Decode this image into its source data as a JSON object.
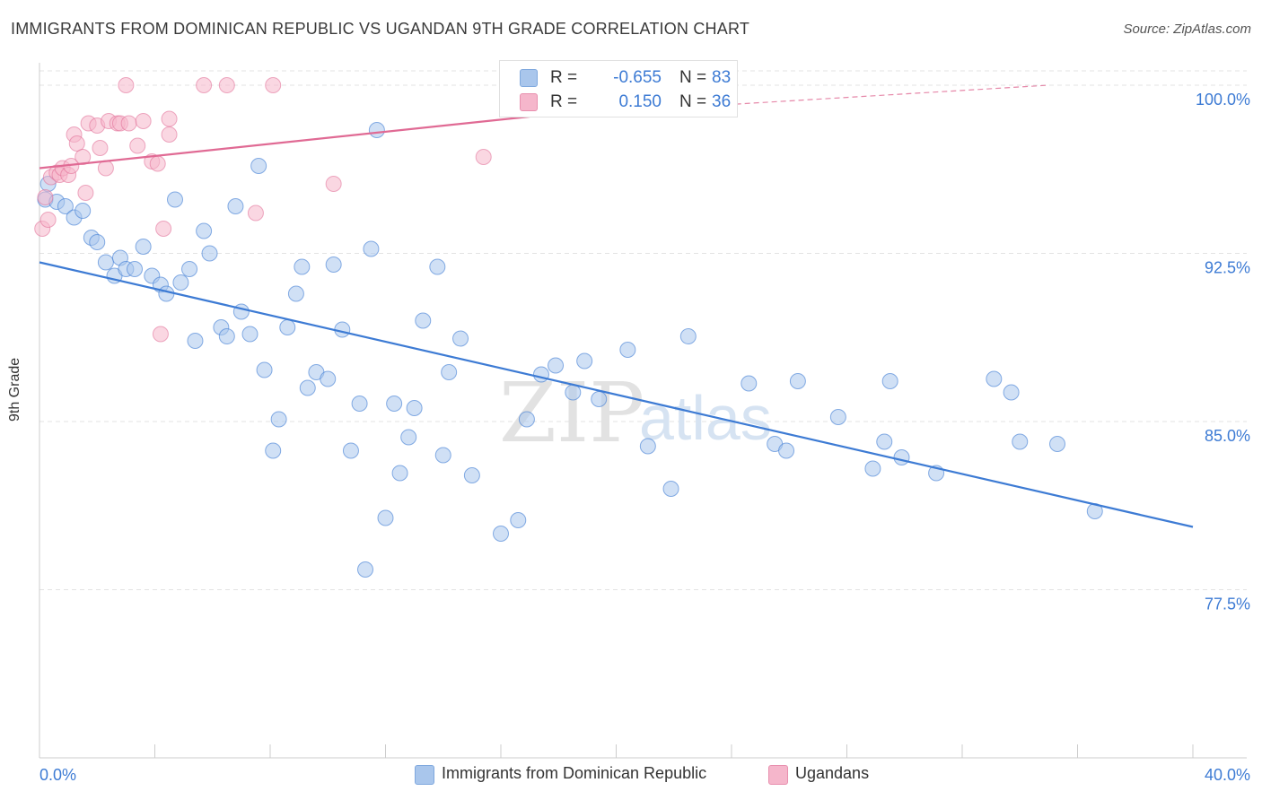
{
  "title": "IMMIGRANTS FROM DOMINICAN REPUBLIC VS UGANDAN 9TH GRADE CORRELATION CHART",
  "source": "Source: ZipAtlas.com",
  "watermark": {
    "zip": "ZIP",
    "atlas": "atlas"
  },
  "legend_top": {
    "rows": [
      {
        "r_label": "R =",
        "r_value": "-0.655",
        "n_label": "N =",
        "n_value": "83"
      },
      {
        "r_label": "R =",
        "r_value": "0.150",
        "n_label": "N =",
        "n_value": "36"
      }
    ]
  },
  "legend_bottom": [
    "Immigrants from Dominican Republic",
    "Ugandans"
  ],
  "chart_data": {
    "type": "scatter",
    "ylabel": "9th Grade",
    "xlim": [
      0.0,
      40.0
    ],
    "ylim": [
      70.0,
      101.0
    ],
    "x_ticks": [
      0,
      4,
      8,
      12,
      16,
      20,
      24,
      28,
      32,
      36,
      40
    ],
    "x_tick_labels": [
      {
        "value": 0,
        "label": "0.0%"
      },
      {
        "value": 40,
        "label": "40.0%"
      }
    ],
    "y_ticks": [
      {
        "value": 100.0,
        "label": "100.0%"
      },
      {
        "value": 92.5,
        "label": "92.5%"
      },
      {
        "value": 85.0,
        "label": "85.0%"
      },
      {
        "value": 77.5,
        "label": "77.5%"
      }
    ],
    "grid": true,
    "colors": {
      "series_a": "#3d7bd4",
      "series_a_fill": "#a9c6ec",
      "series_b": "#e06a94",
      "series_b_fill": "#f5b6cb",
      "tick_label": "#3d7bd4"
    },
    "series": [
      {
        "name": "Immigrants from Dominican Republic",
        "trend": {
          "x": [
            0.0,
            40.0
          ],
          "y": [
            92.1,
            80.3
          ]
        },
        "points": [
          [
            0.2,
            94.9
          ],
          [
            0.3,
            95.6
          ],
          [
            0.6,
            94.8
          ],
          [
            0.9,
            94.6
          ],
          [
            1.2,
            94.1
          ],
          [
            1.5,
            94.4
          ],
          [
            1.8,
            93.2
          ],
          [
            2.0,
            93.0
          ],
          [
            2.3,
            92.1
          ],
          [
            2.6,
            91.5
          ],
          [
            2.8,
            92.3
          ],
          [
            3.0,
            91.8
          ],
          [
            3.3,
            91.8
          ],
          [
            3.6,
            92.8
          ],
          [
            3.9,
            91.5
          ],
          [
            4.2,
            91.1
          ],
          [
            4.4,
            90.7
          ],
          [
            4.7,
            94.9
          ],
          [
            4.9,
            91.2
          ],
          [
            5.2,
            91.8
          ],
          [
            5.4,
            88.6
          ],
          [
            5.7,
            93.5
          ],
          [
            5.9,
            92.5
          ],
          [
            6.3,
            89.2
          ],
          [
            6.5,
            88.8
          ],
          [
            6.8,
            94.6
          ],
          [
            7.0,
            89.9
          ],
          [
            7.3,
            88.9
          ],
          [
            7.6,
            96.4
          ],
          [
            7.8,
            87.3
          ],
          [
            8.1,
            83.7
          ],
          [
            8.3,
            85.1
          ],
          [
            8.6,
            89.2
          ],
          [
            8.9,
            90.7
          ],
          [
            9.1,
            91.9
          ],
          [
            9.3,
            86.5
          ],
          [
            9.6,
            87.2
          ],
          [
            10.0,
            86.9
          ],
          [
            10.2,
            92.0
          ],
          [
            10.5,
            89.1
          ],
          [
            10.8,
            83.7
          ],
          [
            11.1,
            85.8
          ],
          [
            11.3,
            78.4
          ],
          [
            11.5,
            92.7
          ],
          [
            11.7,
            98.0
          ],
          [
            12.0,
            80.7
          ],
          [
            12.3,
            85.8
          ],
          [
            12.5,
            82.7
          ],
          [
            12.8,
            84.3
          ],
          [
            13.0,
            85.6
          ],
          [
            13.3,
            89.5
          ],
          [
            13.8,
            91.9
          ],
          [
            14.0,
            83.5
          ],
          [
            14.2,
            87.2
          ],
          [
            14.6,
            88.7
          ],
          [
            15.0,
            82.6
          ],
          [
            16.0,
            80.0
          ],
          [
            16.6,
            80.6
          ],
          [
            16.9,
            85.1
          ],
          [
            17.4,
            87.1
          ],
          [
            17.9,
            87.5
          ],
          [
            18.5,
            86.3
          ],
          [
            18.9,
            87.7
          ],
          [
            19.4,
            86.0
          ],
          [
            20.4,
            88.2
          ],
          [
            21.1,
            83.9
          ],
          [
            21.9,
            82.0
          ],
          [
            22.5,
            88.8
          ],
          [
            24.6,
            86.7
          ],
          [
            25.5,
            84.0
          ],
          [
            25.9,
            83.7
          ],
          [
            26.3,
            86.8
          ],
          [
            27.7,
            85.2
          ],
          [
            28.9,
            82.9
          ],
          [
            29.3,
            84.1
          ],
          [
            29.5,
            86.8
          ],
          [
            29.9,
            83.4
          ],
          [
            31.1,
            82.7
          ],
          [
            33.1,
            86.9
          ],
          [
            33.7,
            86.3
          ],
          [
            34.0,
            84.1
          ],
          [
            35.3,
            84.0
          ],
          [
            36.6,
            81.0
          ]
        ]
      },
      {
        "name": "Ugandans",
        "trend": {
          "x": [
            0.0,
            17.0
          ],
          "y": [
            96.3,
            98.6
          ]
        },
        "trend_ext": {
          "x": [
            17.0,
            35.0
          ],
          "y": [
            98.6,
            100.0
          ]
        },
        "points": [
          [
            0.1,
            93.6
          ],
          [
            0.2,
            95.0
          ],
          [
            0.3,
            94.0
          ],
          [
            0.4,
            95.9
          ],
          [
            0.6,
            96.1
          ],
          [
            0.7,
            96.0
          ],
          [
            0.8,
            96.3
          ],
          [
            1.0,
            96.0
          ],
          [
            1.1,
            96.4
          ],
          [
            1.2,
            97.8
          ],
          [
            1.3,
            97.4
          ],
          [
            1.5,
            96.8
          ],
          [
            1.6,
            95.2
          ],
          [
            1.7,
            98.3
          ],
          [
            2.0,
            98.2
          ],
          [
            2.1,
            97.2
          ],
          [
            2.3,
            96.3
          ],
          [
            2.4,
            98.4
          ],
          [
            2.7,
            98.3
          ],
          [
            2.8,
            98.3
          ],
          [
            3.0,
            100.0
          ],
          [
            3.1,
            98.3
          ],
          [
            3.4,
            97.3
          ],
          [
            3.6,
            98.4
          ],
          [
            3.9,
            96.6
          ],
          [
            4.1,
            96.5
          ],
          [
            4.3,
            93.6
          ],
          [
            4.5,
            97.8
          ],
          [
            4.2,
            88.9
          ],
          [
            4.5,
            98.5
          ],
          [
            5.7,
            100.0
          ],
          [
            6.5,
            100.0
          ],
          [
            7.5,
            94.3
          ],
          [
            8.1,
            100.0
          ],
          [
            10.2,
            95.6
          ],
          [
            15.4,
            96.8
          ]
        ]
      }
    ]
  }
}
